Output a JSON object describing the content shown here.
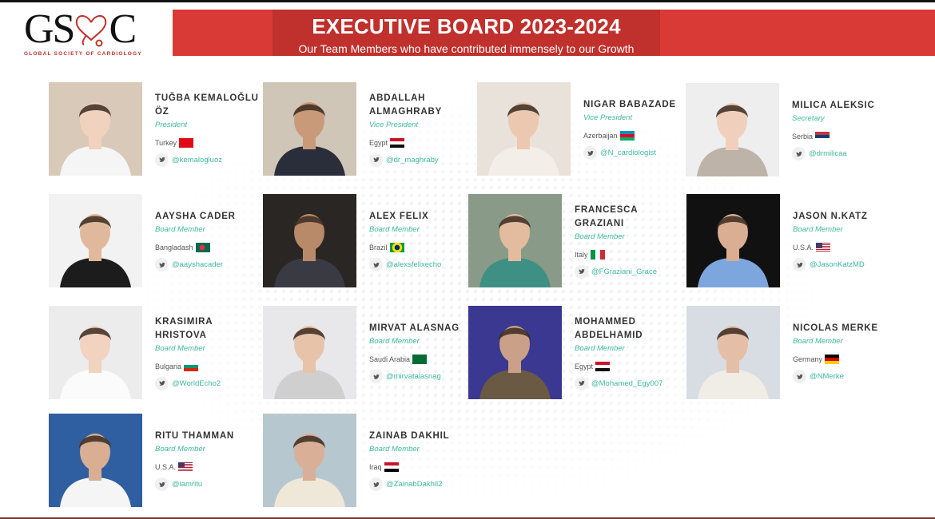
{
  "logo": {
    "text": "GSC",
    "subtitle": "GLOBAL SOCIETY OF CARDIOLOGY"
  },
  "banner": {
    "title": "EXECUTIVE BOARD 2023-2024",
    "subtitle": "Our Team Members who have contributed immensely to our Growth"
  },
  "colors": {
    "banner": "#d93a35",
    "banner_inner": "#c0302c",
    "accent": "#3fb99a",
    "name": "#333333"
  },
  "members": [
    {
      "name": "TUĞBA KEMALOĞLU ÖZ",
      "role": "President",
      "country": "Turkey",
      "flag": "tr",
      "handle": "@kemalogluoz",
      "twitter_icon": "twitter-icon"
    },
    {
      "name": "ABDALLAH ALMAGHRABY",
      "role": "Vice President",
      "country": "Egypt",
      "flag": "eg",
      "handle": "@dr_maghraby",
      "twitter_icon": "twitter-icon"
    },
    {
      "name": "NIGAR BABAZADE",
      "role": "Vice President",
      "country": "Azerbaijan",
      "flag": "az",
      "handle": "@N_cardiologist",
      "twitter_icon": "twitter-icon"
    },
    {
      "name": "MILICA ALEKSIC",
      "role": "Secretary",
      "country": "Serbia",
      "flag": "rs",
      "handle": "@drmilicaa",
      "twitter_icon": "twitter-icon"
    },
    {
      "name": "AAYSHA CADER",
      "role": "Board Member",
      "country": "Bangladash",
      "flag": "bd",
      "handle": "@aayshacader",
      "twitter_icon": "twitter-icon"
    },
    {
      "name": "ALEX FELIX",
      "role": "Board Member",
      "country": "Brazil",
      "flag": "br",
      "handle": "@alexsfelixecho",
      "twitter_icon": "twitter-icon"
    },
    {
      "name": "FRANCESCA GRAZIANI",
      "role": "Board Member",
      "country": "Italy",
      "flag": "it",
      "handle": "@FGraziani_Grace",
      "twitter_icon": "twitter-icon"
    },
    {
      "name": "JASON N.KATZ",
      "role": "Board Member",
      "country": "U.S.A.",
      "flag": "us",
      "handle": "@JasonKatzMD",
      "twitter_icon": "twitter-icon"
    },
    {
      "name": "KRASIMIRA HRISTOVA",
      "role": "Board Member",
      "country": "Bulgaria",
      "flag": "bg",
      "handle": "@WorldEcho2",
      "twitter_icon": "twitter-icon"
    },
    {
      "name": "MIRVAT ALASNAG",
      "role": "Board Member",
      "country": "Saudi Arabia",
      "flag": "sa",
      "handle": "@mirvatalasnag",
      "twitter_icon": "twitter-icon"
    },
    {
      "name": "MOHAMMED ABDELHAMID",
      "role": "Board Member",
      "country": "Egypt",
      "flag": "eg",
      "handle": "@Mohamed_Egy007",
      "twitter_icon": "twitter-icon"
    },
    {
      "name": "NICOLAS MERKE",
      "role": "Board Member",
      "country": "Germany",
      "flag": "de",
      "handle": "@NMerke",
      "twitter_icon": "twitter-icon"
    },
    {
      "name": "RITU THAMMAN",
      "role": "Board Member",
      "country": "U.S.A.",
      "flag": "us",
      "handle": "@iamritu",
      "twitter_icon": "twitter-icon"
    },
    {
      "name": "ZAINAB DAKHIL",
      "role": "Board Member",
      "country": "Iraq",
      "flag": "iq",
      "handle": "@ZainabDakhil2",
      "twitter_icon": "twitter-icon"
    }
  ]
}
